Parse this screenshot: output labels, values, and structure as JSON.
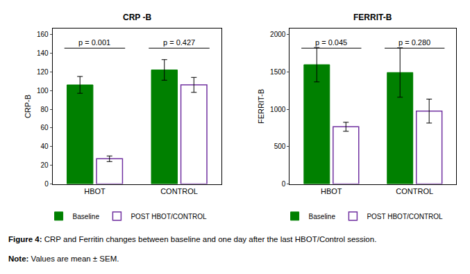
{
  "chart_data": [
    {
      "type": "bar",
      "title": "CRP -B",
      "y_label": "CRP-B",
      "categories": [
        "HBOT",
        "CONTROL"
      ],
      "series": [
        {
          "name": "Baseline",
          "color": "#008000",
          "values": [
            106,
            122
          ],
          "errors": [
            9,
            11
          ]
        },
        {
          "name": "POST HBOT/CONTROL",
          "color": "#7030a0",
          "marker": "hollow",
          "values": [
            27,
            106
          ],
          "errors": [
            3,
            8
          ]
        }
      ],
      "ylim": [
        0,
        166
      ],
      "yticks": [
        0,
        20,
        40,
        60,
        80,
        100,
        120,
        140,
        160
      ],
      "grid": false,
      "legend": "bottom",
      "annotations": [
        {
          "category": "HBOT",
          "text": "p = 0.001"
        },
        {
          "category": "CONTROL",
          "text": "p = 0.427"
        }
      ]
    },
    {
      "type": "bar",
      "title": "FERRIT-B",
      "y_label": "FERRIT-B",
      "categories": [
        "HBOT",
        "CONTROL"
      ],
      "series": [
        {
          "name": "Baseline",
          "color": "#008000",
          "values": [
            1595,
            1490
          ],
          "errors": [
            230,
            330
          ]
        },
        {
          "name": "POST HBOT/CONTROL",
          "color": "#7030a0",
          "marker": "hollow",
          "values": [
            765,
            975
          ],
          "errors": [
            60,
            160
          ]
        }
      ],
      "ylim": [
        0,
        2075
      ],
      "yticks": [
        0,
        500,
        1000,
        1500,
        2000
      ],
      "grid": false,
      "legend": "bottom",
      "annotations": [
        {
          "category": "HBOT",
          "text": "p = 0.045"
        },
        {
          "category": "CONTROL",
          "text": "p = 0.280"
        }
      ]
    }
  ],
  "figure": {
    "caption_label": "Figure 4:",
    "caption": "CRP and Ferritin changes between baseline and one day after the last HBOT/Control session.",
    "note_label": "Note:",
    "note": "Values are mean ± SEM."
  }
}
